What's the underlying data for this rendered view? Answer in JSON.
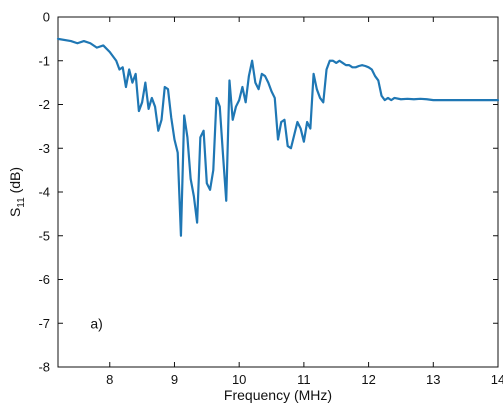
{
  "chart_data": {
    "type": "line",
    "title": "",
    "xlabel": "Frequency (MHz)",
    "ylabel_main": "S",
    "ylabel_sub": "11",
    "ylabel_unit": " (dB)",
    "xlim": [
      7.2,
      14
    ],
    "ylim": [
      -8,
      0
    ],
    "xticks": [
      8,
      9,
      10,
      11,
      12,
      13,
      14
    ],
    "yticks": [
      0,
      -1,
      -2,
      -3,
      -4,
      -5,
      -6,
      -7,
      -8
    ],
    "x_tick_labels": [
      "8",
      "9",
      "10",
      "11",
      "12",
      "13",
      "14"
    ],
    "y_tick_labels": [
      "0",
      "-1",
      "-2",
      "-3",
      "-4",
      "-5",
      "-6",
      "-7",
      "-8"
    ],
    "grid": false,
    "annotation": "a)",
    "line_color": "#1f77b4",
    "series": [
      {
        "x": [
          7.2,
          7.4,
          7.5,
          7.6,
          7.7,
          7.8,
          7.9,
          8.0,
          8.1,
          8.15,
          8.2,
          8.25,
          8.3,
          8.35,
          8.4,
          8.45,
          8.5,
          8.55,
          8.6,
          8.65,
          8.7,
          8.75,
          8.8,
          8.85,
          8.9,
          8.95,
          9.0,
          9.05,
          9.1,
          9.15,
          9.2,
          9.25,
          9.3,
          9.35,
          9.4,
          9.45,
          9.5,
          9.55,
          9.6,
          9.65,
          9.7,
          9.75,
          9.8,
          9.85,
          9.9,
          9.95,
          10.0,
          10.05,
          10.1,
          10.15,
          10.2,
          10.25,
          10.3,
          10.35,
          10.4,
          10.45,
          10.5,
          10.55,
          10.6,
          10.65,
          10.7,
          10.75,
          10.8,
          10.85,
          10.9,
          10.95,
          11.0,
          11.05,
          11.1,
          11.15,
          11.2,
          11.25,
          11.3,
          11.35,
          11.4,
          11.45,
          11.5,
          11.55,
          11.6,
          11.65,
          11.7,
          11.75,
          11.8,
          11.85,
          11.9,
          11.95,
          12.0,
          12.05,
          12.1,
          12.15,
          12.2,
          12.25,
          12.3,
          12.35,
          12.4,
          12.5,
          12.6,
          12.7,
          12.8,
          12.9,
          13.0,
          13.1,
          13.2,
          13.3,
          13.4,
          13.5,
          13.6,
          13.7,
          13.8,
          13.9,
          14.0
        ],
        "y": [
          -0.5,
          -0.55,
          -0.6,
          -0.55,
          -0.6,
          -0.7,
          -0.65,
          -0.8,
          -1.0,
          -1.2,
          -1.15,
          -1.6,
          -1.2,
          -1.5,
          -1.3,
          -2.15,
          -1.95,
          -1.5,
          -2.1,
          -1.85,
          -2.05,
          -2.6,
          -2.35,
          -1.6,
          -1.65,
          -2.3,
          -2.8,
          -3.1,
          -5.0,
          -2.25,
          -2.75,
          -3.7,
          -4.1,
          -4.7,
          -2.75,
          -2.6,
          -3.8,
          -3.95,
          -3.5,
          -1.85,
          -2.05,
          -3.15,
          -4.2,
          -1.45,
          -2.35,
          -2.05,
          -1.9,
          -1.6,
          -1.95,
          -1.35,
          -1.0,
          -1.5,
          -1.65,
          -1.3,
          -1.35,
          -1.5,
          -1.7,
          -1.85,
          -2.8,
          -2.4,
          -2.35,
          -2.95,
          -3.0,
          -2.7,
          -2.4,
          -2.55,
          -2.85,
          -2.4,
          -2.55,
          -1.3,
          -1.65,
          -1.85,
          -1.95,
          -1.2,
          -1.0,
          -1.0,
          -1.05,
          -1.0,
          -1.05,
          -1.1,
          -1.1,
          -1.15,
          -1.15,
          -1.12,
          -1.1,
          -1.12,
          -1.15,
          -1.2,
          -1.35,
          -1.45,
          -1.8,
          -1.9,
          -1.85,
          -1.9,
          -1.85,
          -1.88,
          -1.87,
          -1.88,
          -1.87,
          -1.88,
          -1.9,
          -1.9,
          -1.9,
          -1.9,
          -1.9,
          -1.9,
          -1.9,
          -1.9,
          -1.9,
          -1.9,
          -1.9
        ]
      }
    ]
  }
}
